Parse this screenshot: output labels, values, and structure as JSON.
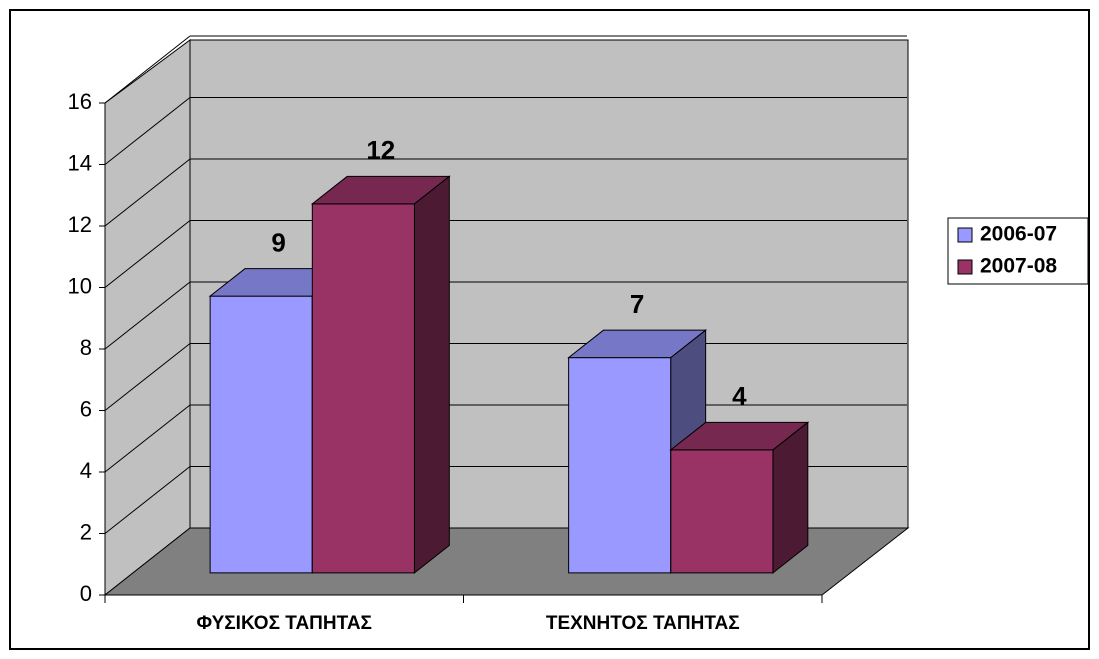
{
  "chart_data": {
    "type": "bar",
    "categories": [
      "ΦΥΣΙΚΟΣ ΤΑΠΗΤΑΣ",
      "ΤΕΧΝΗΤΟΣ ΤΑΠΗΤΑΣ"
    ],
    "series": [
      {
        "name": "2006-07",
        "color": "#9999ff",
        "values": [
          9,
          7
        ]
      },
      {
        "name": "2007-08",
        "color": "#993366",
        "values": [
          12,
          4
        ]
      }
    ],
    "ylim": [
      0,
      16
    ],
    "yticks": [
      0,
      2,
      4,
      6,
      8,
      10,
      12,
      14,
      16
    ],
    "grid": true,
    "legend": "right"
  }
}
